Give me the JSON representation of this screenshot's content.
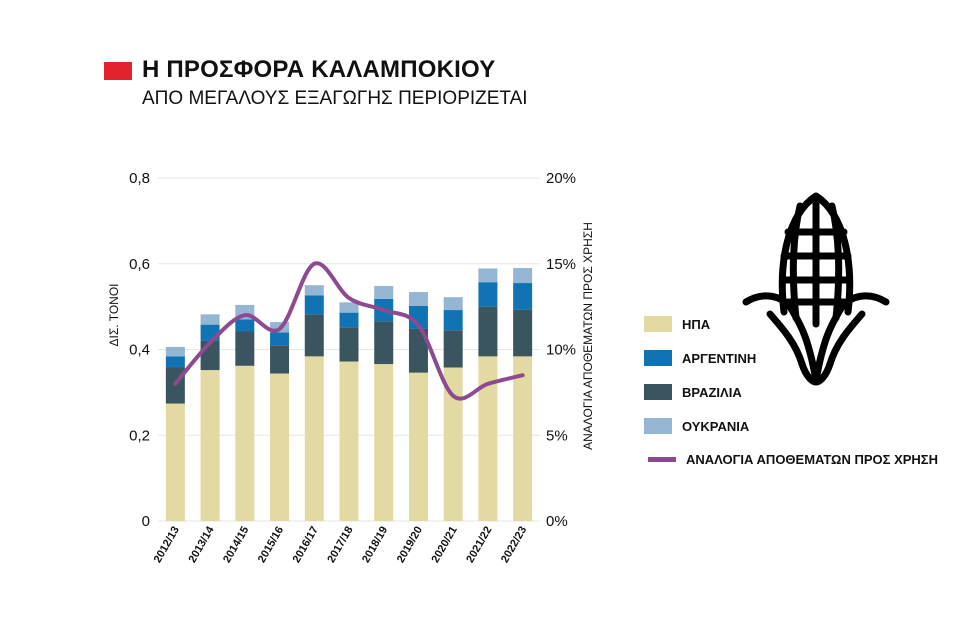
{
  "header": {
    "title": "Η ΠΡΟΣΦΟΡΑ ΚΑΛΑΜΠΟΚΙΟΥ",
    "subtitle": "ΑΠΟ ΜΕΓΑΛΟΥΣ ΕΞΑΓΩΓΗΣ ΠΕΡΙΟΡΙΖΕΤΑΙ",
    "marker_color": "#e3232b"
  },
  "icon": {
    "name": "corn-icon"
  },
  "chart_data": {
    "type": "bar",
    "stacked": true,
    "categories": [
      "2012/13",
      "2013/14",
      "2014/15",
      "2015/16",
      "2016/17",
      "2017/18",
      "2018/19",
      "2019/20",
      "2020/21",
      "2021/22",
      "2022/23"
    ],
    "ylabel": "ΔΙΣ. ΤΟΝΟΙ",
    "ylim": [
      0,
      0.8
    ],
    "yticks": [
      "0",
      "0,2",
      "0,4",
      "0,6",
      "0,8"
    ],
    "y2label": "ΑΝΑΛΟΓΙΑ ΑΠΟΘΕΜΑΤΩΝ ΠΡΟΣ ΧΡΗΣΗ",
    "y2lim": [
      0,
      20
    ],
    "y2ticks": [
      "0%",
      "5%",
      "10%",
      "15%",
      "20%"
    ],
    "grid": true,
    "legend_position": "right",
    "series": [
      {
        "name": "ΗΠΑ",
        "color": "#e3d9a2",
        "values": [
          0.274,
          0.352,
          0.362,
          0.344,
          0.384,
          0.372,
          0.366,
          0.346,
          0.358,
          0.384,
          0.384
        ]
      },
      {
        "name": "ΒΡΑΖΙΛΙΑ",
        "color": "#3b5560",
        "values": [
          0.084,
          0.068,
          0.08,
          0.066,
          0.098,
          0.08,
          0.1,
          0.102,
          0.087,
          0.116,
          0.109
        ]
      },
      {
        "name": "ΑΡΓΕΝΤΙΝΗ",
        "color": "#1173b4",
        "values": [
          0.026,
          0.038,
          0.028,
          0.03,
          0.044,
          0.034,
          0.052,
          0.054,
          0.047,
          0.057,
          0.062
        ]
      },
      {
        "name": "ΟΥΚΡΑΝΙΑ",
        "color": "#95b6d2",
        "values": [
          0.022,
          0.024,
          0.034,
          0.024,
          0.024,
          0.024,
          0.03,
          0.032,
          0.03,
          0.032,
          0.035
        ]
      }
    ],
    "line": {
      "name": "ΑΝΑΛΟΓΙΑ ΑΠΟΘΕΜΑΤΩΝ ΠΡΟΣ ΧΡΗΣΗ",
      "color": "#8e4a91",
      "axis": "right",
      "values": [
        8.0,
        10.4,
        12.0,
        11.2,
        15.0,
        13.0,
        12.3,
        11.4,
        7.3,
        8.0,
        8.5
      ]
    },
    "legend_order": [
      "ΗΠΑ",
      "ΑΡΓΕΝΤΙΝΗ",
      "ΒΡΑΖΙΛΙΑ",
      "ΟΥΚΡΑΝΙΑ",
      "ΑΝΑΛΟΓΙΑ ΑΠΟΘΕΜΑΤΩΝ ΠΡΟΣ ΧΡΗΣΗ"
    ]
  }
}
